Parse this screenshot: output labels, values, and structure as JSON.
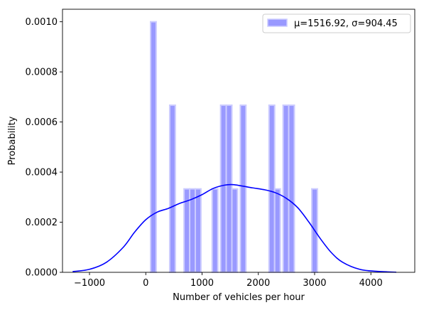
{
  "chart_data": {
    "type": "bar",
    "xlabel": "Number of vehicles per hour",
    "ylabel": "Probability",
    "xlim": [
      -1480,
      4780
    ],
    "ylim": [
      0,
      0.00105
    ],
    "xticks": [
      -1000,
      0,
      1000,
      2000,
      3000,
      4000
    ],
    "xtick_labels": [
      "−1000",
      "0",
      "1000",
      "2000",
      "3000",
      "4000"
    ],
    "yticks": [
      0,
      0.0002,
      0.0004,
      0.0006,
      0.0008,
      0.001
    ],
    "ytick_labels": [
      "0.0000",
      "0.0002",
      "0.0004",
      "0.0006",
      "0.0008",
      "0.0010"
    ],
    "grid": false,
    "legend_position": "top-right",
    "histogram": {
      "name": "μ=1516.92, σ=904.45",
      "color": "#9999ff",
      "edge_color": "#ccccff",
      "bins": [
        {
          "x0": 85,
          "x1": 185,
          "value": 0.001
        },
        {
          "x0": 425,
          "x1": 525,
          "value": 0.000667
        },
        {
          "x0": 680,
          "x1": 780,
          "value": 0.000333
        },
        {
          "x0": 780,
          "x1": 880,
          "value": 0.000333
        },
        {
          "x0": 880,
          "x1": 980,
          "value": 0.000333
        },
        {
          "x0": 1180,
          "x1": 1280,
          "value": 0.000333
        },
        {
          "x0": 1330,
          "x1": 1430,
          "value": 0.000667
        },
        {
          "x0": 1430,
          "x1": 1530,
          "value": 0.000667
        },
        {
          "x0": 1530,
          "x1": 1630,
          "value": 0.000333
        },
        {
          "x0": 1680,
          "x1": 1780,
          "value": 0.000667
        },
        {
          "x0": 2190,
          "x1": 2290,
          "value": 0.000667
        },
        {
          "x0": 2290,
          "x1": 2390,
          "value": 0.000333
        },
        {
          "x0": 2440,
          "x1": 2540,
          "value": 0.000667
        },
        {
          "x0": 2540,
          "x1": 2640,
          "value": 0.000667
        },
        {
          "x0": 2950,
          "x1": 3050,
          "value": 0.000333
        }
      ]
    },
    "kde": {
      "color": "#0000ff",
      "x": [
        -1300,
        -1000,
        -700,
        -400,
        -200,
        0,
        200,
        400,
        600,
        800,
        1000,
        1200,
        1400,
        1550,
        1700,
        1900,
        2100,
        2300,
        2500,
        2700,
        2900,
        3100,
        3300,
        3500,
        3800,
        4100,
        4450
      ],
      "y": [
        3e-06,
        1.2e-05,
        4e-05,
        0.0001,
        0.00016,
        0.00021,
        0.00024,
        0.000255,
        0.000275,
        0.00029,
        0.00031,
        0.000335,
        0.000348,
        0.00035,
        0.000345,
        0.000337,
        0.00033,
        0.000318,
        0.000295,
        0.000258,
        0.0002,
        0.000135,
        7.8e-05,
        4e-05,
        1.2e-05,
        4e-06,
        5e-07
      ]
    }
  }
}
